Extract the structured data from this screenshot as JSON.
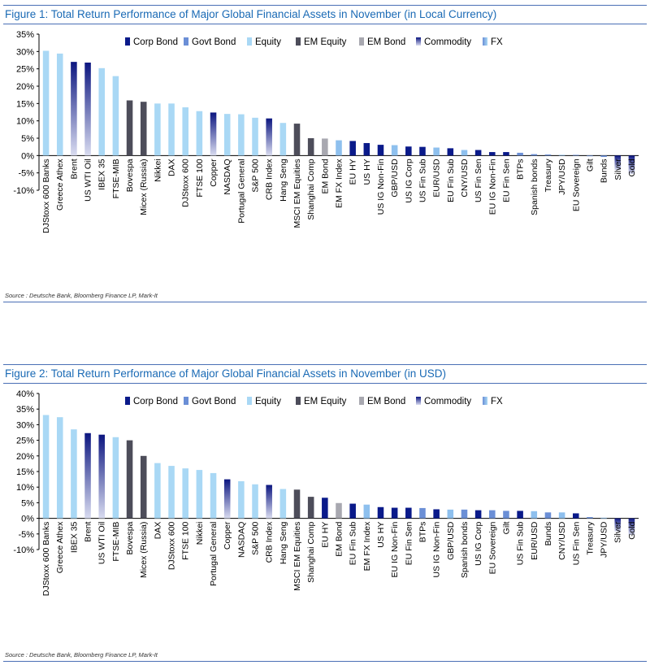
{
  "colors": {
    "corp_bond": "#0a1a8a",
    "govt_bond": "#6b8fd6",
    "equity": "#a9d8f5",
    "em_equity": "#4d4d5a",
    "em_bond": "#a8a8b0",
    "commodity_top": "#0c1680",
    "commodity_bottom": "#d9dcf0",
    "fx": "#8ec0ee"
  },
  "figures": [
    {
      "title": "Figure 1: Total Return Performance of Major Global Financial Assets in November (in Local Currency)",
      "source": "Source : Deutsche Bank, Bloomberg Finance LP, Mark-It"
    },
    {
      "title": "Figure 2: Total Return Performance of Major Global Financial Assets in November (in USD)",
      "source": "Source : Deutsche Bank, Bloomberg Finance LP, Mark-It"
    }
  ],
  "chart_data": [
    {
      "type": "bar",
      "title": "Figure 1: Total Return Performance of Major Global Financial Assets in November (in Local Currency)",
      "xlabel": "",
      "ylabel": "",
      "ylim": [
        -10,
        35
      ],
      "yticks": [
        "35%",
        "30%",
        "25%",
        "20%",
        "15%",
        "10%",
        "5%",
        "0%",
        "-5%",
        "-10%"
      ],
      "legend": [
        {
          "key": "corp",
          "label": "Corp Bond"
        },
        {
          "key": "govt",
          "label": "Govt Bond"
        },
        {
          "key": "equity",
          "label": "Equity"
        },
        {
          "key": "emeq",
          "label": "EM Equity"
        },
        {
          "key": "embond",
          "label": "EM Bond"
        },
        {
          "key": "commodity",
          "label": "Commodity"
        },
        {
          "key": "fx",
          "label": "FX"
        }
      ],
      "legend_position": "top-right",
      "categories": [
        "DJStoxx 600 Banks",
        "Greece Athex",
        "Brent",
        "US WTI Oil",
        "IBEX 35",
        "FTSE-MIB",
        "Bovespa",
        "Micex (Russia)",
        "Nikkei",
        "DAX",
        "DJStoxx 600",
        "FTSE 100",
        "Copper",
        "NASDAQ",
        "Portugal General",
        "S&P 500",
        "CRB Index",
        "Hang Seng",
        "MSCI EM Equities",
        "Shanghai Comp",
        "EM Bond",
        "EM FX Index",
        "EU HY",
        "US HY",
        "US IG Non-Fin",
        "GBP/USD",
        "US IG Corp",
        "US Fin Sub",
        "EUR/USD",
        "EU Fin Sub",
        "CNY/USD",
        "US Fin Sen",
        "EU IG Non-Fin",
        "EU Fin Sen",
        "BTPs",
        "Spanish bonds",
        "Treasury",
        "JPY/USD",
        "EU Sovereign",
        "Gilt",
        "Bunds",
        "Silver",
        "Gold"
      ],
      "values": [
        30.2,
        29.4,
        27.0,
        26.8,
        25.2,
        22.9,
        15.9,
        15.5,
        15.0,
        15.0,
        13.9,
        12.8,
        12.4,
        12.0,
        11.9,
        10.9,
        10.7,
        9.4,
        9.2,
        5.0,
        4.9,
        4.4,
        4.2,
        3.6,
        3.1,
        3.0,
        2.6,
        2.5,
        2.3,
        2.1,
        1.6,
        1.6,
        1.0,
        1.0,
        0.8,
        0.4,
        0.3,
        0.2,
        0.2,
        -0.2,
        -0.4,
        -4.2,
        -5.3
      ],
      "types": [
        "equity",
        "equity",
        "commodity",
        "commodity",
        "equity",
        "equity",
        "emeq",
        "emeq",
        "equity",
        "equity",
        "equity",
        "equity",
        "commodity",
        "equity",
        "equity",
        "equity",
        "commodity",
        "equity",
        "emeq",
        "emeq",
        "embond",
        "fx",
        "corp",
        "corp",
        "corp",
        "fx",
        "corp",
        "corp",
        "fx",
        "corp",
        "fx",
        "corp",
        "corp",
        "corp",
        "govt",
        "govt",
        "govt",
        "fx",
        "govt",
        "govt",
        "govt",
        "commodity",
        "commodity"
      ]
    },
    {
      "type": "bar",
      "title": "Figure 2: Total Return Performance of Major Global Financial Assets in November (in USD)",
      "xlabel": "",
      "ylabel": "",
      "ylim": [
        -10,
        40
      ],
      "yticks": [
        "40%",
        "35%",
        "30%",
        "25%",
        "20%",
        "15%",
        "10%",
        "5%",
        "0%",
        "-5%",
        "-10%"
      ],
      "legend": [
        {
          "key": "corp",
          "label": "Corp Bond"
        },
        {
          "key": "govt",
          "label": "Govt Bond"
        },
        {
          "key": "equity",
          "label": "Equity"
        },
        {
          "key": "emeq",
          "label": "EM Equity"
        },
        {
          "key": "embond",
          "label": "EM Bond"
        },
        {
          "key": "commodity",
          "label": "Commodity"
        },
        {
          "key": "fx",
          "label": "FX"
        }
      ],
      "legend_position": "top-right",
      "categories": [
        "DJStoxx 600 Banks",
        "Greece Athex",
        "IBEX 35",
        "Brent",
        "US WTI Oil",
        "FTSE-MIB",
        "Bovespa",
        "Micex (Russia)",
        "DAX",
        "DJStoxx 600",
        "FTSE 100",
        "Nikkei",
        "Portugal General",
        "Copper",
        "NASDAQ",
        "S&P 500",
        "CRB Index",
        "Hang Seng",
        "MSCI EM Equities",
        "Shanghai Comp",
        "EU HY",
        "EM Bond",
        "EU Fin Sub",
        "EM FX Index",
        "US HY",
        "EU IG Non-Fin",
        "EU Fin Sen",
        "BTPs",
        "US IG Non-Fin",
        "GBP/USD",
        "Spanish bonds",
        "US IG Corp",
        "EU Sovereign",
        "Gilt",
        "US Fin Sub",
        "EUR/USD",
        "Bunds",
        "CNY/USD",
        "US Fin Sen",
        "Treasury",
        "JPY/USD",
        "Silver",
        "Gold"
      ],
      "values": [
        33.1,
        32.4,
        28.5,
        27.3,
        26.8,
        26.0,
        25.0,
        20.0,
        17.7,
        16.8,
        16.0,
        15.5,
        14.5,
        12.5,
        11.9,
        10.9,
        10.7,
        9.4,
        9.2,
        6.9,
        6.6,
        4.9,
        4.7,
        4.4,
        3.6,
        3.4,
        3.4,
        3.3,
        2.9,
        2.8,
        2.8,
        2.6,
        2.6,
        2.4,
        2.4,
        2.3,
        1.9,
        1.9,
        1.6,
        0.4,
        0.2,
        -4.2,
        -5.3
      ],
      "types": [
        "equity",
        "equity",
        "equity",
        "commodity",
        "commodity",
        "equity",
        "emeq",
        "emeq",
        "equity",
        "equity",
        "equity",
        "equity",
        "equity",
        "commodity",
        "equity",
        "equity",
        "commodity",
        "equity",
        "emeq",
        "emeq",
        "corp",
        "embond",
        "corp",
        "fx",
        "corp",
        "corp",
        "corp",
        "govt",
        "corp",
        "fx",
        "govt",
        "corp",
        "govt",
        "govt",
        "corp",
        "fx",
        "govt",
        "fx",
        "corp",
        "govt",
        "fx",
        "commodity",
        "commodity"
      ]
    }
  ]
}
